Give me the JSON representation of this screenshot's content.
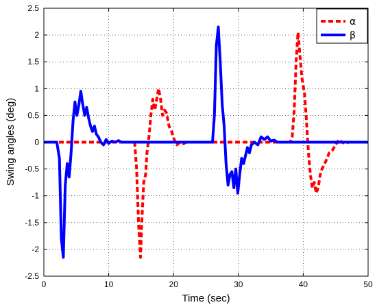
{
  "chart_data": {
    "type": "line",
    "xlabel": "Time (sec)",
    "ylabel": "Swing angles (deg)",
    "xlim": [
      0,
      50
    ],
    "ylim": [
      -2.5,
      2.5
    ],
    "xticks": [
      0,
      10,
      20,
      30,
      40,
      50
    ],
    "yticks": [
      -2.5,
      -2,
      -1.5,
      -1,
      -0.5,
      0,
      0.5,
      1,
      1.5,
      2,
      2.5
    ],
    "xtick_labels": [
      "0",
      "10",
      "20",
      "30",
      "40",
      "50"
    ],
    "ytick_labels": [
      "-2.5",
      "-2",
      "-1.5",
      "-1",
      "-0.5",
      "0",
      "0.5",
      "1",
      "1.5",
      "2",
      "2.5"
    ],
    "grid": true,
    "legend_position": "top-right",
    "series": [
      {
        "name": "α",
        "color": "#ff0000",
        "style": "dashed",
        "x": [
          0,
          14.0,
          14.3,
          14.6,
          14.9,
          15.1,
          15.4,
          15.7,
          15.9,
          16.2,
          16.5,
          16.8,
          17.1,
          17.4,
          17.7,
          18.0,
          18.3,
          18.6,
          18.9,
          19.3,
          19.7,
          20.1,
          20.5,
          21.0,
          21.5,
          22.0,
          23.0,
          25.0,
          38.0,
          38.3,
          38.6,
          38.9,
          39.2,
          39.5,
          39.8,
          40.2,
          40.5,
          40.8,
          41.1,
          41.4,
          41.7,
          42.0,
          42.3,
          42.7,
          43.1,
          43.5,
          44.0,
          44.5,
          45.0,
          45.5,
          46.0,
          46.5,
          47.0,
          48.0,
          50.0
        ],
        "y": [
          0,
          0,
          -0.5,
          -1.5,
          -2.15,
          -1.5,
          -0.75,
          -0.6,
          -0.2,
          0.1,
          0.5,
          0.8,
          0.6,
          0.8,
          1.0,
          0.8,
          0.5,
          0.6,
          0.55,
          0.3,
          0.2,
          0.05,
          -0.05,
          0.0,
          -0.03,
          0.0,
          0.0,
          0.0,
          0.0,
          0.1,
          0.6,
          1.5,
          2.05,
          1.6,
          1.2,
          0.9,
          0.4,
          -0.2,
          -0.6,
          -0.85,
          -0.75,
          -0.95,
          -0.85,
          -0.55,
          -0.45,
          -0.35,
          -0.2,
          -0.15,
          -0.05,
          0.05,
          0.0,
          -0.03,
          0.0,
          0.0,
          0.0
        ]
      },
      {
        "name": "β",
        "color": "#0000ff",
        "style": "solid",
        "x": [
          0,
          2.0,
          2.4,
          2.7,
          3.0,
          3.3,
          3.6,
          3.9,
          4.2,
          4.5,
          4.8,
          5.1,
          5.4,
          5.7,
          6.0,
          6.3,
          6.6,
          6.9,
          7.2,
          7.5,
          7.8,
          8.1,
          8.4,
          8.8,
          9.2,
          9.6,
          10.0,
          10.5,
          11.0,
          11.5,
          12.0,
          13.0,
          15.0,
          26.0,
          26.3,
          26.6,
          26.9,
          27.2,
          27.5,
          27.8,
          28.1,
          28.4,
          28.7,
          29.0,
          29.3,
          29.6,
          29.9,
          30.2,
          30.5,
          30.8,
          31.1,
          31.4,
          31.7,
          32.0,
          32.5,
          33.0,
          33.5,
          34.0,
          34.5,
          35.0,
          35.5,
          36.0,
          37.0,
          40.0,
          50.0
        ],
        "y": [
          0,
          0,
          -0.3,
          -1.8,
          -2.15,
          -0.8,
          -0.4,
          -0.65,
          -0.2,
          0.4,
          0.75,
          0.5,
          0.7,
          0.95,
          0.7,
          0.5,
          0.65,
          0.45,
          0.3,
          0.2,
          0.3,
          0.15,
          0.1,
          0.0,
          -0.05,
          0.05,
          -0.02,
          0.02,
          0.0,
          0.03,
          0.0,
          0.0,
          0.0,
          0.0,
          0.5,
          1.8,
          2.15,
          1.5,
          0.7,
          0.3,
          -0.4,
          -0.8,
          -0.6,
          -0.55,
          -0.85,
          -0.5,
          -0.95,
          -0.6,
          -0.3,
          -0.4,
          -0.25,
          -0.1,
          -0.2,
          -0.05,
          0.0,
          -0.05,
          0.1,
          0.05,
          0.1,
          0.02,
          0.04,
          0.0,
          0.0,
          0.0,
          0.0
        ]
      }
    ]
  }
}
